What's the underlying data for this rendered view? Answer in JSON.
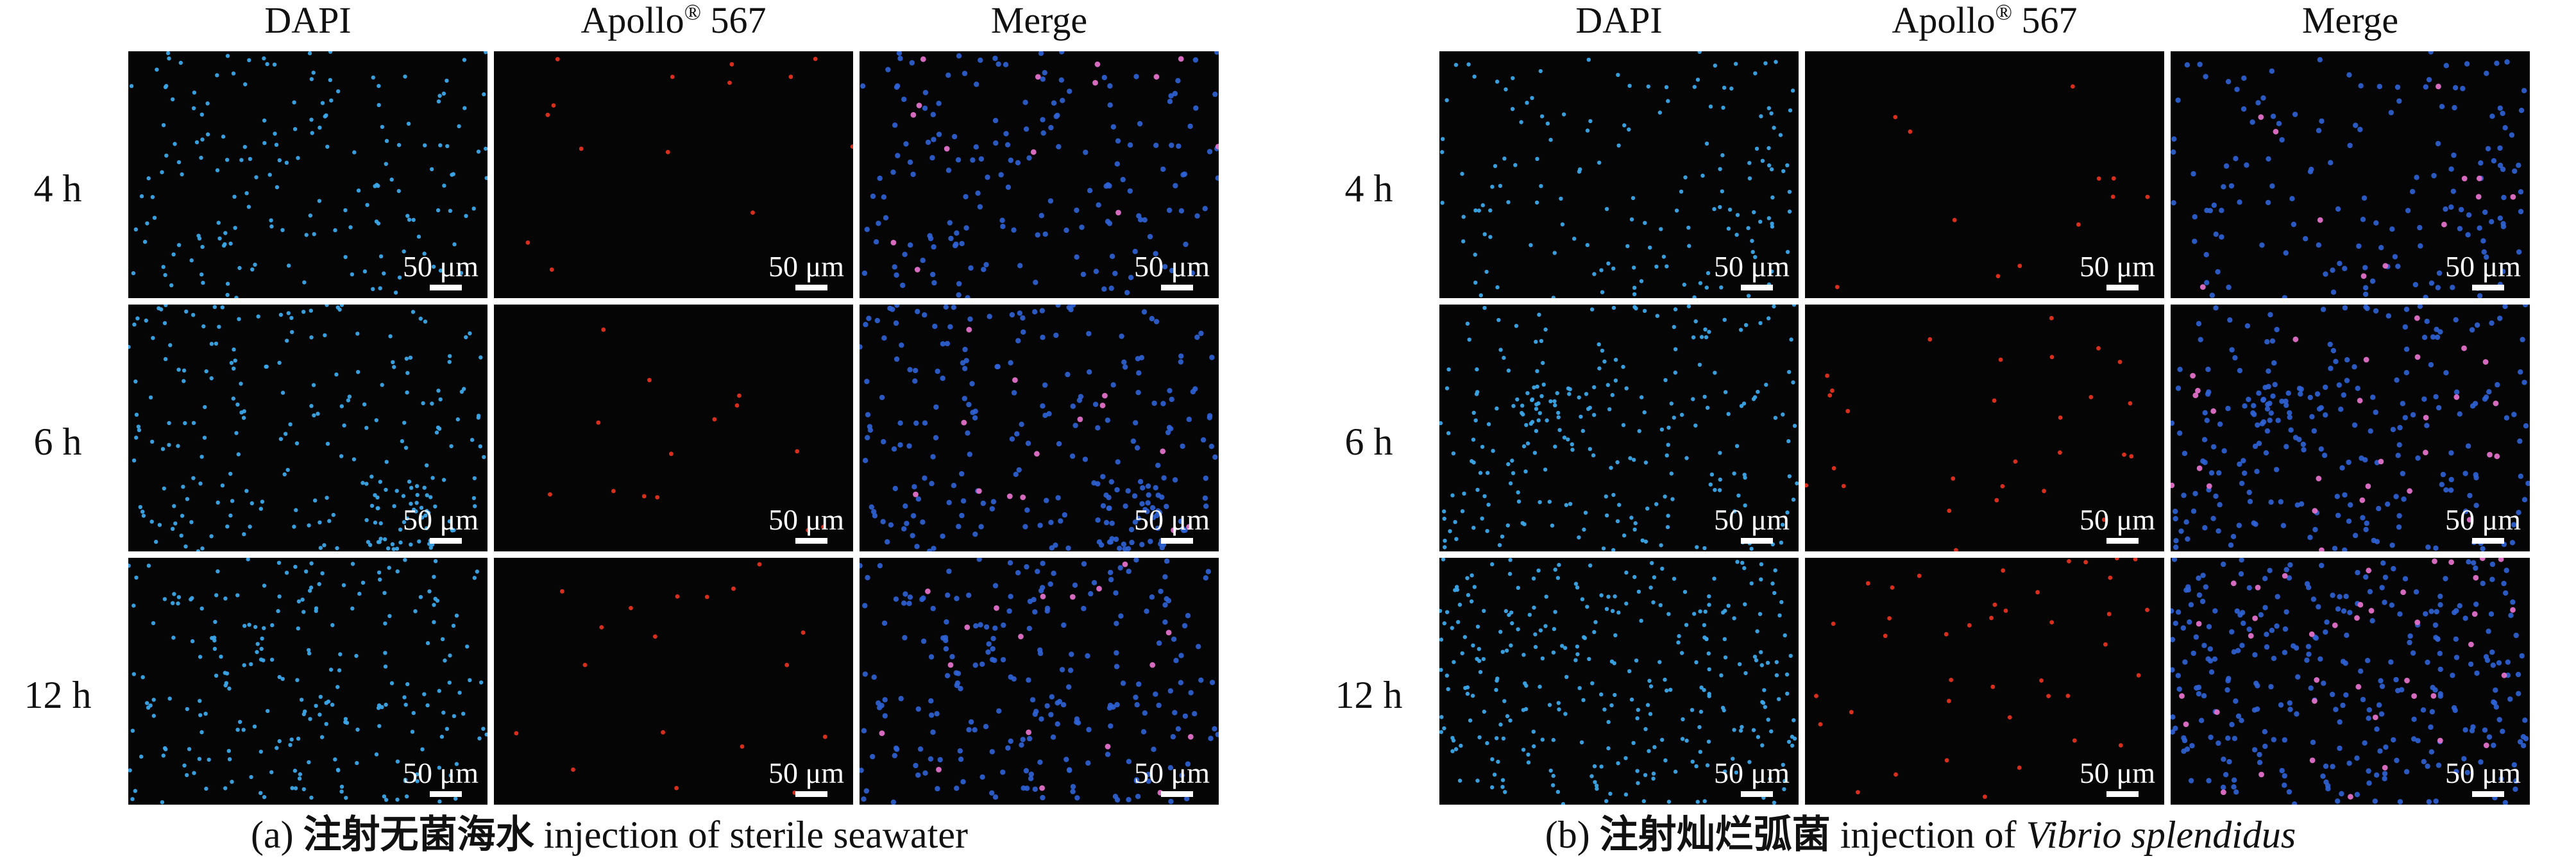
{
  "columns": {
    "dapi": "DAPI",
    "apollo_name": "Apollo",
    "apollo_mark": "®",
    "apollo_num": " 567",
    "merge": "Merge"
  },
  "rows": [
    "4 h",
    "6 h",
    "12 h"
  ],
  "scale_label": "50 μm",
  "panels": {
    "a": {
      "prefix": "(a) ",
      "cn": "注射无菌海水",
      "en": " injection of sterile seawater",
      "en_italic": ""
    },
    "b": {
      "prefix": "(b) ",
      "cn": "注射灿烂弧菌",
      "en": " injection of ",
      "en_italic": "Vibrio splendidus"
    }
  },
  "colors": {
    "dapi": "#3ba7e8",
    "apollo": "#e43020",
    "merge_blue": "#2f63d6",
    "merge_pink": "#e070c8",
    "background": "#050505"
  },
  "cell_density": {
    "a": {
      "dapi": [
        170,
        240,
        230
      ],
      "apollo": [
        14,
        14,
        18
      ],
      "merge_pink": [
        14,
        14,
        18
      ]
    },
    "b": {
      "dapi": [
        150,
        240,
        300
      ],
      "apollo": [
        12,
        28,
        40
      ],
      "merge_pink": [
        12,
        28,
        40
      ]
    }
  }
}
